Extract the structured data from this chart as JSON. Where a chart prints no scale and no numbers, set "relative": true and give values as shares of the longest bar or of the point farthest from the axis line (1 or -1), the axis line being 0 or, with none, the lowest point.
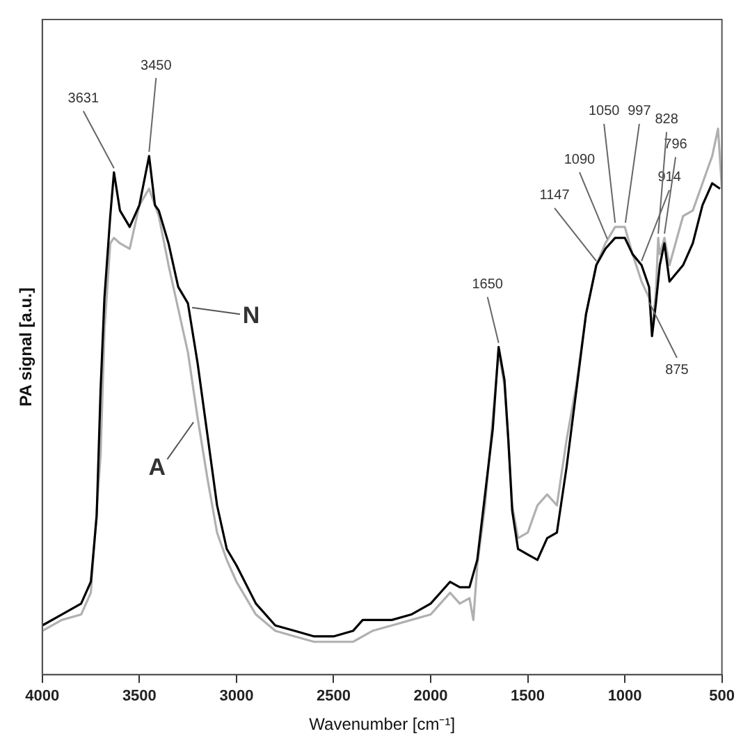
{
  "chart_data": {
    "type": "line",
    "xlabel": "Wavenumber [cm⁻¹]",
    "ylabel": "PA signal [a.u.]",
    "relative": true,
    "xlim": [
      4000,
      500
    ],
    "xticks": [
      4000,
      3500,
      3000,
      2500,
      2000,
      1500,
      1000,
      500
    ],
    "grid": false,
    "legend": false,
    "marker": "none",
    "line_style": "solid",
    "x": [
      4000,
      3900,
      3800,
      3750,
      3720,
      3700,
      3680,
      3650,
      3631,
      3600,
      3550,
      3500,
      3450,
      3420,
      3400,
      3350,
      3300,
      3250,
      3200,
      3150,
      3100,
      3050,
      3000,
      2900,
      2800,
      2700,
      2600,
      2500,
      2400,
      2350,
      2300,
      2200,
      2100,
      2000,
      1950,
      1900,
      1850,
      1800,
      1760,
      1720,
      1680,
      1650,
      1620,
      1600,
      1580,
      1550,
      1500,
      1450,
      1400,
      1350,
      1300,
      1250,
      1200,
      1147,
      1100,
      1050,
      1000,
      960,
      914,
      875,
      860,
      840,
      820,
      796,
      770,
      700,
      650,
      600,
      550,
      510
    ],
    "series": [
      {
        "name": "N",
        "color": "#000000",
        "values": [
          0.09,
          0.11,
          0.13,
          0.17,
          0.29,
          0.52,
          0.69,
          0.84,
          0.92,
          0.85,
          0.82,
          0.86,
          0.95,
          0.86,
          0.85,
          0.79,
          0.71,
          0.68,
          0.57,
          0.44,
          0.31,
          0.23,
          0.2,
          0.13,
          0.09,
          0.08,
          0.07,
          0.07,
          0.08,
          0.1,
          0.1,
          0.1,
          0.11,
          0.13,
          0.15,
          0.17,
          0.16,
          0.16,
          0.21,
          0.33,
          0.45,
          0.6,
          0.54,
          0.43,
          0.3,
          0.23,
          0.22,
          0.21,
          0.25,
          0.26,
          0.38,
          0.52,
          0.66,
          0.75,
          0.78,
          0.8,
          0.8,
          0.77,
          0.75,
          0.71,
          0.62,
          0.68,
          0.75,
          0.79,
          0.72,
          0.75,
          0.79,
          0.86,
          0.9,
          0.89
        ]
      },
      {
        "name": "A",
        "color": "#b0b0b0",
        "x": [
          4000,
          3900,
          3800,
          3750,
          3700,
          3680,
          3650,
          3631,
          3600,
          3550,
          3500,
          3450,
          3400,
          3350,
          3300,
          3250,
          3200,
          3150,
          3100,
          3050,
          3000,
          2900,
          2800,
          2700,
          2600,
          2500,
          2400,
          2300,
          2200,
          2100,
          2000,
          1950,
          1900,
          1850,
          1800,
          1780,
          1760,
          1720,
          1680,
          1650,
          1620,
          1600,
          1580,
          1550,
          1500,
          1450,
          1400,
          1350,
          1300,
          1250,
          1200,
          1147,
          1100,
          1050,
          1000,
          960,
          914,
          875,
          860,
          840,
          828,
          820,
          796,
          770,
          700,
          650,
          600,
          550,
          520,
          500
        ],
        "values": [
          0.08,
          0.1,
          0.11,
          0.15,
          0.4,
          0.63,
          0.79,
          0.8,
          0.79,
          0.78,
          0.86,
          0.89,
          0.84,
          0.75,
          0.67,
          0.59,
          0.47,
          0.36,
          0.26,
          0.21,
          0.17,
          0.11,
          0.08,
          0.07,
          0.06,
          0.06,
          0.06,
          0.08,
          0.09,
          0.1,
          0.11,
          0.13,
          0.15,
          0.13,
          0.14,
          0.1,
          0.2,
          0.31,
          0.47,
          0.59,
          0.53,
          0.43,
          0.31,
          0.25,
          0.26,
          0.31,
          0.33,
          0.31,
          0.43,
          0.53,
          0.66,
          0.75,
          0.79,
          0.82,
          0.82,
          0.77,
          0.72,
          0.69,
          0.63,
          0.7,
          0.8,
          0.77,
          0.8,
          0.75,
          0.84,
          0.85,
          0.9,
          0.95,
          1,
          0.89
        ]
      }
    ],
    "annotations": [
      {
        "text": "3631",
        "x": 3631,
        "y": 0.92
      },
      {
        "text": "3450",
        "x": 3450,
        "y": 0.95
      },
      {
        "text": "1650",
        "x": 1650,
        "y": 0.6
      },
      {
        "text": "1147",
        "x": 1147,
        "y": 0.75
      },
      {
        "text": "1090",
        "x": 1090,
        "y": 0.79
      },
      {
        "text": "1050",
        "x": 1050,
        "y": 0.82
      },
      {
        "text": "997",
        "x": 997,
        "y": 0.82
      },
      {
        "text": "914",
        "x": 914,
        "y": 0.75
      },
      {
        "text": "875",
        "x": 875,
        "y": 0.69
      },
      {
        "text": "796",
        "x": 796,
        "y": 0.8
      },
      {
        "text": "828",
        "x": 828,
        "y": 0.8
      }
    ]
  }
}
